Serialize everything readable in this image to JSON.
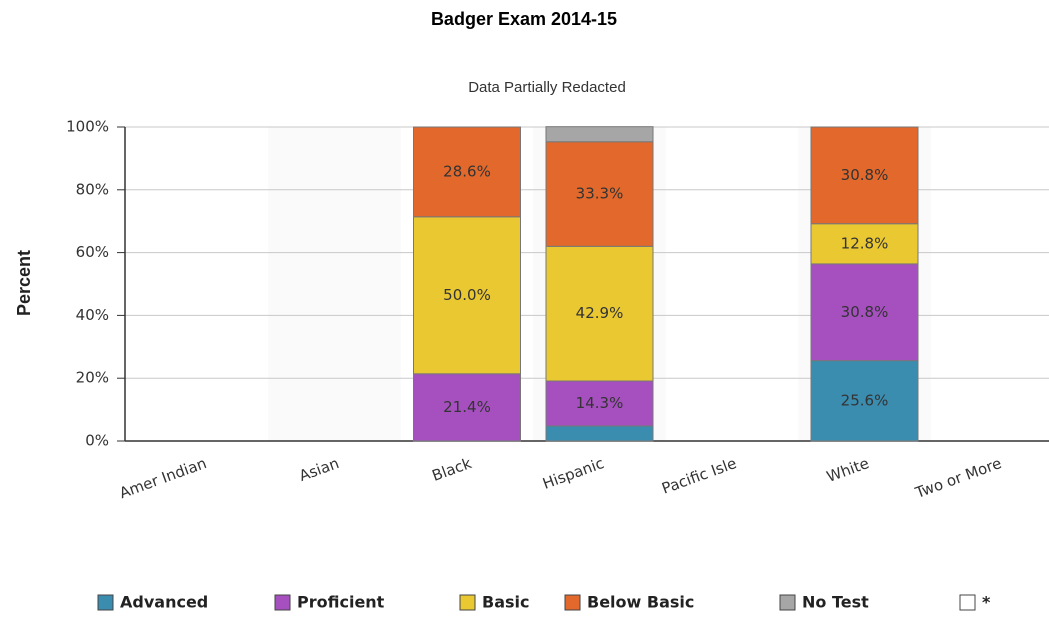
{
  "chart_data": {
    "type": "stacked_bar",
    "title": "Badger Exam 2014-15",
    "subtitle": "Data Partially Redacted",
    "y_label": "Percent",
    "categories": [
      "Amer Indian",
      "Asian",
      "Black",
      "Hispanic",
      "Pacific Isle",
      "White",
      "Two or More"
    ],
    "series": [
      {
        "name": "Advanced",
        "color": "#3b8db0",
        "values": [
          null,
          null,
          0,
          4.8,
          null,
          25.6,
          null
        ],
        "value_labels": [
          null,
          null,
          null,
          null,
          null,
          "25.6%",
          null
        ]
      },
      {
        "name": "Proficient",
        "color": "#a650c0",
        "values": [
          null,
          null,
          21.4,
          14.3,
          null,
          30.8,
          null
        ],
        "value_labels": [
          null,
          null,
          "21.4%",
          "14.3%",
          null,
          "30.8%",
          null
        ]
      },
      {
        "name": "Basic",
        "color": "#e9c832",
        "values": [
          null,
          null,
          50.0,
          42.9,
          null,
          12.8,
          null
        ],
        "value_labels": [
          null,
          null,
          "50.0%",
          "42.9%",
          null,
          "12.8%",
          null
        ]
      },
      {
        "name": "Below Basic",
        "color": "#e2692b",
        "values": [
          null,
          null,
          28.6,
          33.3,
          null,
          30.8,
          null
        ],
        "value_labels": [
          null,
          null,
          "28.6%",
          "33.3%",
          null,
          "30.8%",
          null
        ]
      },
      {
        "name": "No Test",
        "color": "#a6a6a6",
        "values": [
          null,
          null,
          0,
          4.8,
          null,
          0,
          null
        ]
      },
      {
        "name": "*",
        "color": "#ffffff",
        "values": [
          null,
          null,
          0,
          0,
          null,
          0,
          null
        ]
      }
    ],
    "ylim": [
      0,
      100
    ],
    "yticks": [
      {
        "value": 0,
        "label": "0%"
      },
      {
        "value": 20,
        "label": "20%"
      },
      {
        "value": 40,
        "label": "40%"
      },
      {
        "value": 60,
        "label": "60%"
      },
      {
        "value": 80,
        "label": "80%"
      },
      {
        "value": 100,
        "label": "100%"
      }
    ],
    "grid": true
  }
}
